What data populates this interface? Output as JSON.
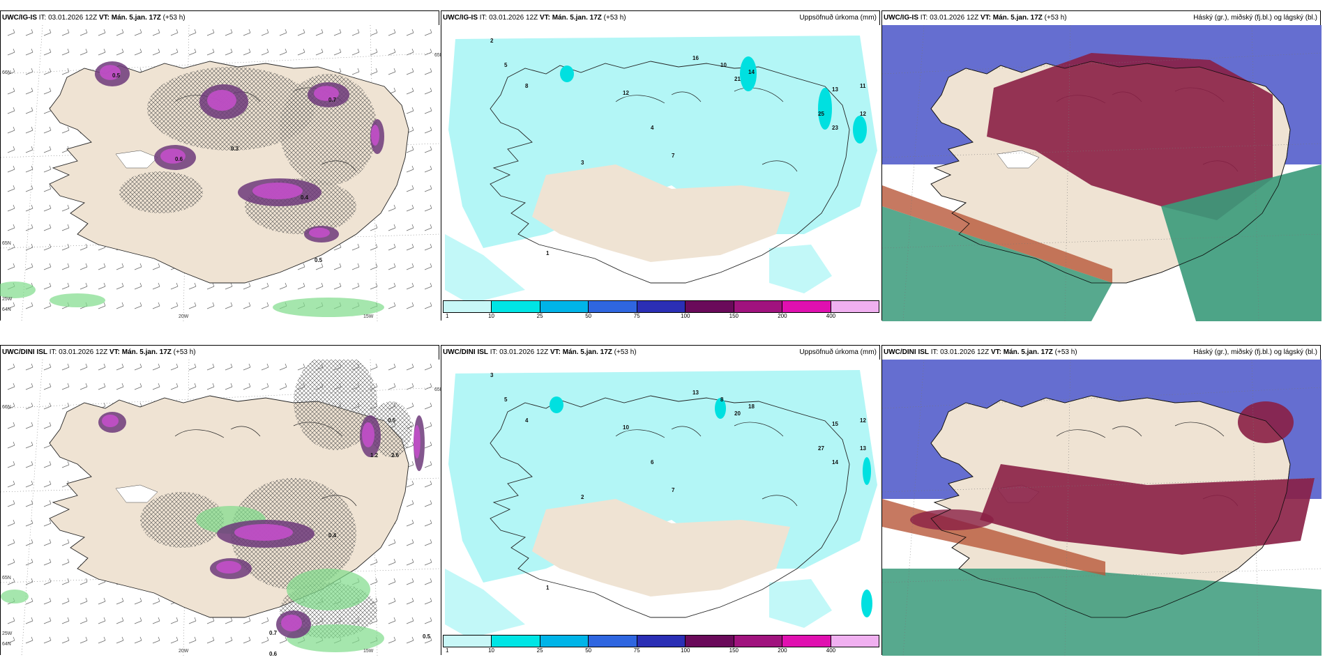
{
  "panels": [
    {
      "id": "r1c1",
      "model": "UWC/IG-IS",
      "it_label": "IT:",
      "it_value": "03.01.2026 12Z",
      "vt_label": "VT:",
      "vt_value": "Mán. 5.jan. 17Z",
      "lead": "(+53 h)",
      "right_title": "",
      "grid_labels": [
        "66N",
        "65N",
        "64N",
        "65N",
        "25W",
        "20W",
        "15W"
      ],
      "spot_values": [
        "0.5",
        "0.3",
        "0.4",
        "0.6",
        "0.7",
        "0.5"
      ]
    },
    {
      "id": "r1c2",
      "model": "UWC/IG-IS",
      "it_label": "IT:",
      "it_value": "03.01.2026 12Z",
      "vt_label": "VT:",
      "vt_value": "Mán. 5.jan. 17Z",
      "lead": "(+53 h)",
      "right_title": "Uppsöfnuð úrkoma (mm)",
      "spot_values": [
        "2",
        "5",
        "8",
        "12",
        "16",
        "21",
        "14",
        "25",
        "23",
        "11",
        "12",
        "13",
        "4",
        "3",
        "1",
        "10",
        "7"
      ]
    },
    {
      "id": "r1c3",
      "model": "UWC/IG-IS",
      "it_label": "IT:",
      "it_value": "03.01.2026 12Z",
      "vt_label": "VT:",
      "vt_value": "Mán. 5.jan. 17Z",
      "lead": "(+53 h)",
      "right_title": "Háský (gr.), miðský (fj.bl.) og lágský (bl.)"
    },
    {
      "id": "r2c1",
      "model": "UWC/DINI ISL",
      "it_label": "IT:",
      "it_value": "03.01.2026 12Z",
      "vt_label": "VT:",
      "vt_value": "Mán. 5.jan. 17Z",
      "lead": "(+53 h)",
      "right_title": "",
      "grid_labels": [
        "66N",
        "65N",
        "64N",
        "65N",
        "25W",
        "20W",
        "15W"
      ],
      "spot_values": [
        "0.5",
        "0.4",
        "0.7",
        "0.6",
        "1.2",
        "2.6",
        "0.5"
      ]
    },
    {
      "id": "r2c2",
      "model": "UWC/DINI ISL",
      "it_label": "IT:",
      "it_value": "03.01.2026 12Z",
      "vt_label": "VT:",
      "vt_value": "Mán. 5.jan. 17Z",
      "lead": "(+53 h)",
      "right_title": "Uppsöfnuð úrkoma (mm)",
      "spot_values": [
        "3",
        "5",
        "4",
        "10",
        "13",
        "20",
        "18",
        "27",
        "14",
        "12",
        "13",
        "15",
        "6",
        "2",
        "1",
        "8",
        "7"
      ]
    },
    {
      "id": "r2c3",
      "model": "UWC/DINI ISL",
      "it_label": "IT:",
      "it_value": "03.01.2026 12Z",
      "vt_label": "VT:",
      "vt_value": "Mán. 5.jan. 17Z",
      "lead": "(+53 h)",
      "right_title": "Háský (gr.), miðský (fj.bl.) og lágský (bl.)"
    }
  ],
  "colorbar": {
    "ticks": [
      "1",
      "10",
      "25",
      "50",
      "75",
      "100",
      "150",
      "200",
      "400"
    ],
    "colors": [
      "#c8f7f7",
      "#00e5e5",
      "#00b4e8",
      "#2f66e0",
      "#2b2fb5",
      "#6a0a5a",
      "#a0137e",
      "#e010b0",
      "#f0b0f0"
    ]
  },
  "colors": {
    "land": "#efe3d3",
    "sea_precip": "#b3f6f6",
    "cloud_high": "#3a9a7a",
    "cloud_mid": "#8a1f45",
    "cloud_low": "#4a55c8",
    "magenta": "#c24fc9",
    "purple": "#6d3a7a"
  }
}
